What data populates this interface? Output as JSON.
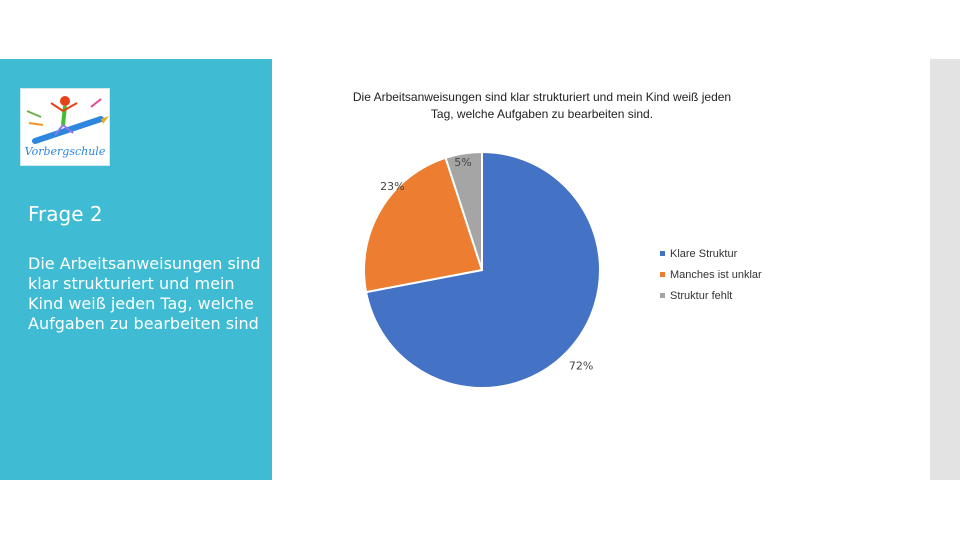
{
  "slide": {
    "heading": "Frage 2",
    "description": "Die Arbeitsanweisungen sind klar strukturiert und mein Kind weiß jeden Tag, welche Aufgaben zu bearbeiten sind"
  },
  "logo": {
    "text": "Vorbergschule"
  },
  "colors": {
    "panel": "#3fbbd3",
    "strip": "#e3e3e3"
  },
  "chart_data": {
    "type": "pie",
    "title": "Die Arbeitsanweisungen sind klar strukturiert und mein Kind weiß jeden Tag, welche Aufgaben zu bearbeiten sind.",
    "legend_position": "right",
    "slices": [
      {
        "name": "Klare Struktur",
        "value": 72,
        "label": "72%",
        "color": "#4472c4"
      },
      {
        "name": "Manches ist unklar",
        "value": 23,
        "label": "23%",
        "color": "#ed7d31"
      },
      {
        "name": "Struktur fehlt",
        "value": 5,
        "label": "5%",
        "color": "#a5a5a5"
      }
    ]
  }
}
